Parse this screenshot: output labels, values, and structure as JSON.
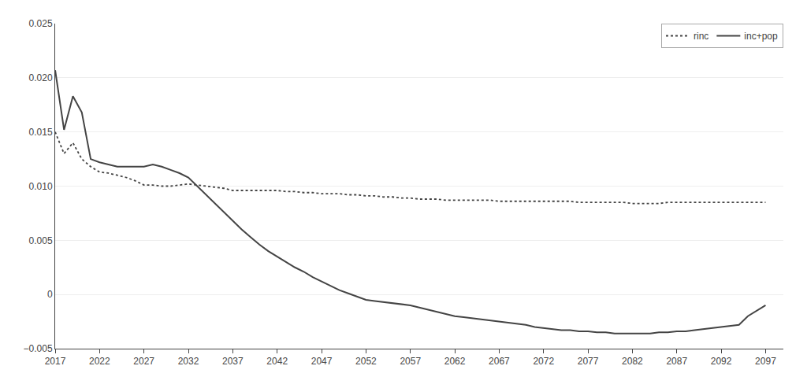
{
  "chart_data": {
    "type": "line",
    "x": [
      2017,
      2018,
      2019,
      2020,
      2021,
      2022,
      2023,
      2024,
      2025,
      2026,
      2027,
      2028,
      2029,
      2030,
      2031,
      2032,
      2033,
      2034,
      2035,
      2036,
      2037,
      2038,
      2039,
      2040,
      2041,
      2042,
      2043,
      2044,
      2045,
      2046,
      2047,
      2048,
      2049,
      2050,
      2051,
      2052,
      2053,
      2054,
      2055,
      2056,
      2057,
      2058,
      2059,
      2060,
      2061,
      2062,
      2063,
      2064,
      2065,
      2066,
      2067,
      2068,
      2069,
      2070,
      2071,
      2072,
      2073,
      2074,
      2075,
      2076,
      2077,
      2078,
      2079,
      2080,
      2081,
      2082,
      2083,
      2084,
      2085,
      2086,
      2087,
      2088,
      2089,
      2090,
      2091,
      2092,
      2093,
      2094,
      2095,
      2096,
      2097
    ],
    "series": [
      {
        "name": "rinc",
        "color": "#444444",
        "line_style": "dotted",
        "values": [
          0.015,
          0.013,
          0.014,
          0.0125,
          0.0118,
          0.0113,
          0.0112,
          0.011,
          0.0108,
          0.0105,
          0.0101,
          0.0101,
          0.01,
          0.01,
          0.0101,
          0.0102,
          0.0101,
          0.01,
          0.0099,
          0.0098,
          0.0096,
          0.0096,
          0.0096,
          0.0096,
          0.0096,
          0.0096,
          0.0095,
          0.0095,
          0.0094,
          0.0094,
          0.0093,
          0.0093,
          0.0093,
          0.0092,
          0.0092,
          0.0091,
          0.0091,
          0.009,
          0.009,
          0.0089,
          0.0089,
          0.0088,
          0.0088,
          0.0088,
          0.0087,
          0.0087,
          0.0087,
          0.0087,
          0.0087,
          0.0087,
          0.0086,
          0.0086,
          0.0086,
          0.0086,
          0.0086,
          0.0086,
          0.0086,
          0.0086,
          0.0086,
          0.0085,
          0.0085,
          0.0085,
          0.0085,
          0.0085,
          0.0085,
          0.0084,
          0.0084,
          0.0084,
          0.0084,
          0.0085,
          0.0085,
          0.0085,
          0.0085,
          0.0085,
          0.0085,
          0.0085,
          0.0085,
          0.0085,
          0.0085,
          0.0085,
          0.0085
        ]
      },
      {
        "name": "inc+pop",
        "color": "#444444",
        "line_style": "solid",
        "values": [
          0.0207,
          0.0152,
          0.0183,
          0.0168,
          0.0125,
          0.0122,
          0.012,
          0.0118,
          0.0118,
          0.0118,
          0.0118,
          0.012,
          0.0118,
          0.0115,
          0.0112,
          0.0108,
          0.01,
          0.0092,
          0.0084,
          0.0076,
          0.0068,
          0.006,
          0.0053,
          0.0046,
          0.004,
          0.0035,
          0.003,
          0.0025,
          0.0021,
          0.0016,
          0.0012,
          0.0008,
          0.0004,
          0.0001,
          -0.0002,
          -0.0005,
          -0.0006,
          -0.0007,
          -0.0008,
          -0.0009,
          -0.001,
          -0.0012,
          -0.0014,
          -0.0016,
          -0.0018,
          -0.002,
          -0.0021,
          -0.0022,
          -0.0023,
          -0.0024,
          -0.0025,
          -0.0026,
          -0.0027,
          -0.0028,
          -0.003,
          -0.0031,
          -0.0032,
          -0.0033,
          -0.0033,
          -0.0034,
          -0.0034,
          -0.0035,
          -0.0035,
          -0.0036,
          -0.0036,
          -0.0036,
          -0.0036,
          -0.0036,
          -0.0035,
          -0.0035,
          -0.0034,
          -0.0034,
          -0.0033,
          -0.0032,
          -0.0031,
          -0.003,
          -0.0029,
          -0.0028,
          -0.002,
          -0.0015,
          -0.001
        ]
      }
    ],
    "xlim": [
      2017,
      2099
    ],
    "xticks": [
      2017,
      2022,
      2027,
      2032,
      2037,
      2042,
      2047,
      2052,
      2057,
      2062,
      2067,
      2072,
      2077,
      2082,
      2087,
      2092,
      2097
    ],
    "ylim": [
      -0.005,
      0.025
    ],
    "yticks": [
      {
        "value": -0.005,
        "label": "−0.005"
      },
      0,
      0.005,
      {
        "value": 0.01,
        "label": "0.010"
      },
      0.015,
      {
        "value": 0.02,
        "label": "0.020"
      },
      0.025
    ],
    "grid": "y",
    "legend": "upper right"
  }
}
